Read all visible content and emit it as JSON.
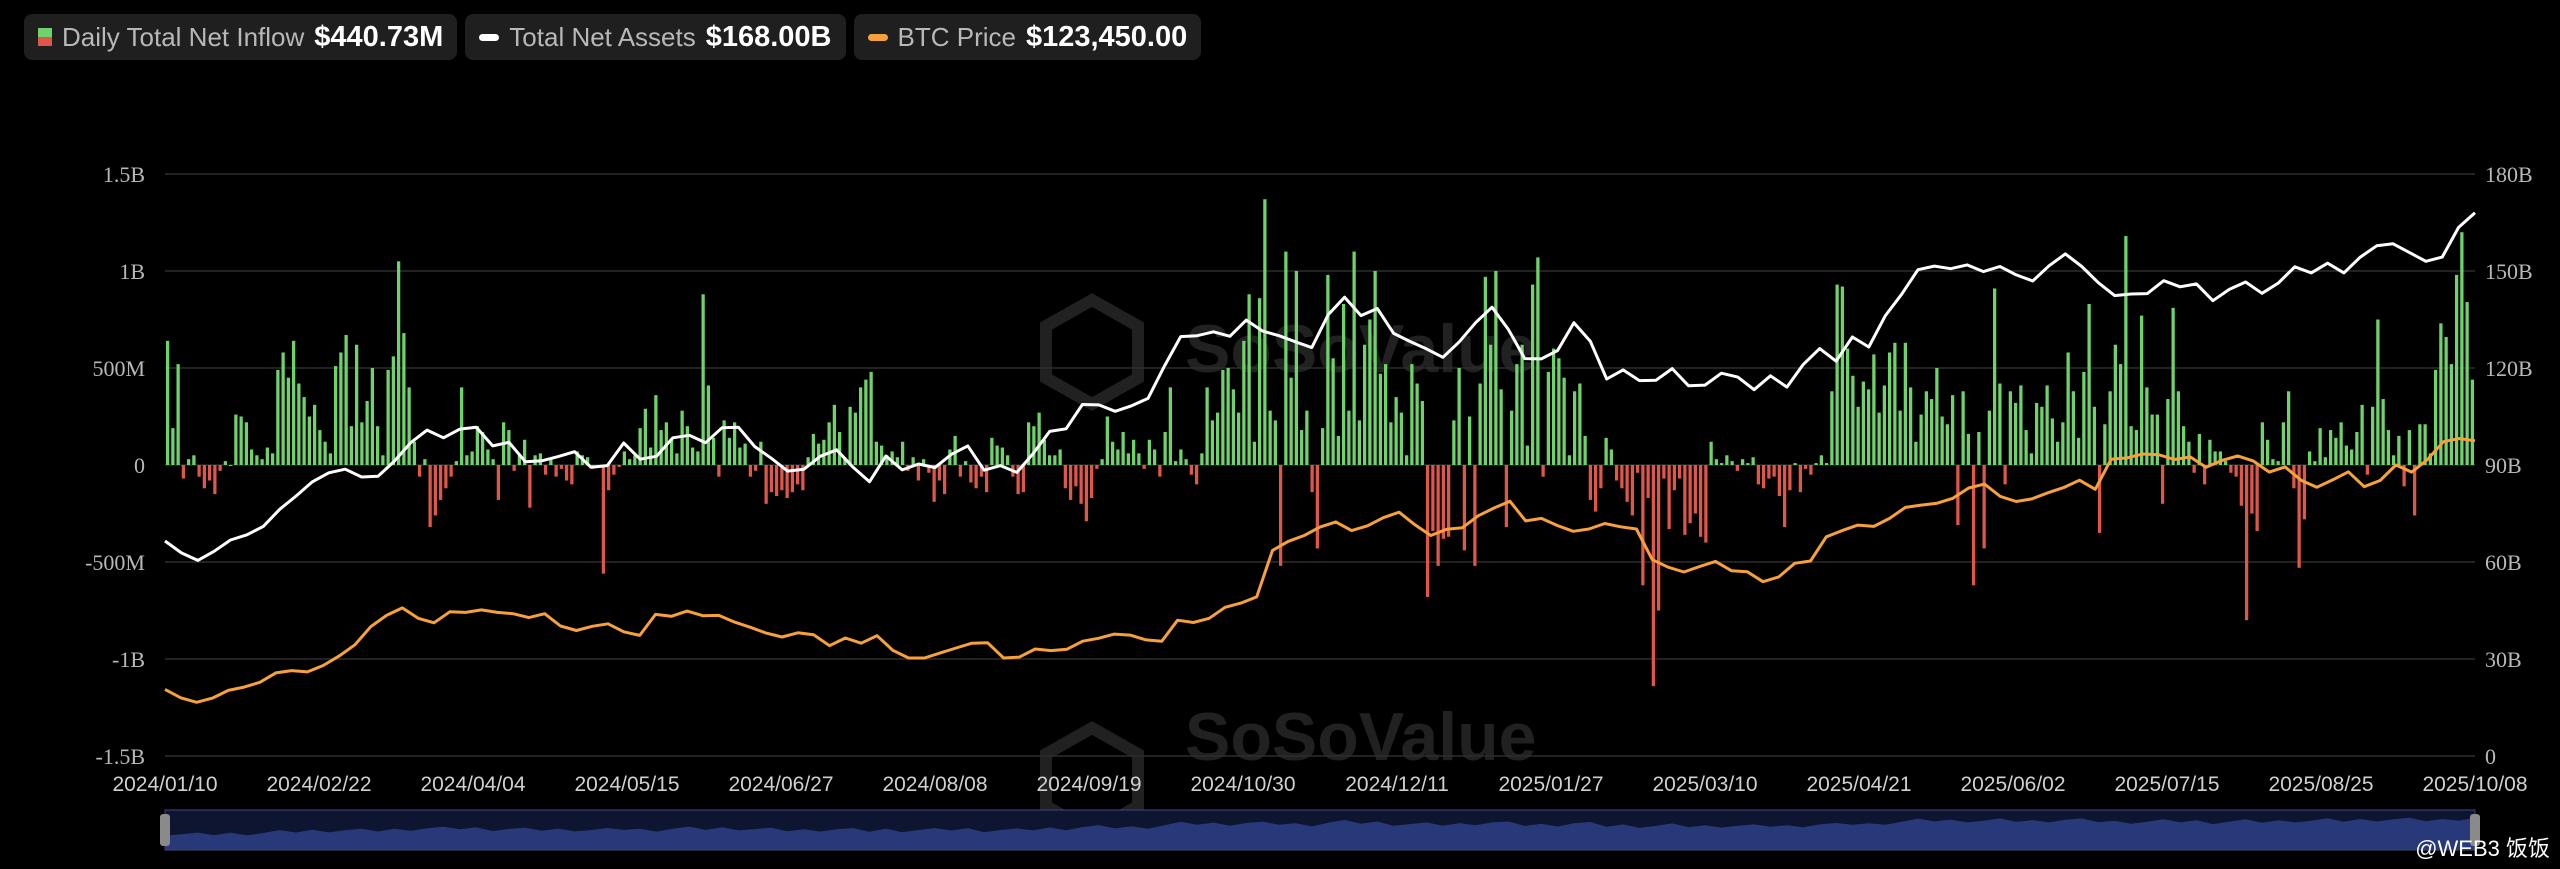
{
  "legend": [
    {
      "label": "Daily Total Net Inflow",
      "value": "$440.73M",
      "swatch": "split"
    },
    {
      "label": "Total Net Assets",
      "value": "$168.00B",
      "swatch": "line",
      "color": "#ffffff"
    },
    {
      "label": "BTC Price",
      "value": "$123,450.00",
      "swatch": "line",
      "color": "#f7a13c"
    }
  ],
  "watermark": "SoSoValue",
  "credit": "@WEB3 饭饭",
  "chart_data": {
    "type": "bar+line",
    "x_tick_labels": [
      "2024/01/10",
      "2024/02/22",
      "2024/04/04",
      "2024/05/15",
      "2024/06/27",
      "2024/08/08",
      "2024/09/19",
      "2024/10/30",
      "2024/12/11",
      "2025/01/27",
      "2025/03/10",
      "2025/04/21",
      "2025/06/02",
      "2025/07/15",
      "2025/08/25",
      "2025/10/08"
    ],
    "left_axis": {
      "ticks": [
        "1.5B",
        "1B",
        "500M",
        "0",
        "-500M",
        "-1B",
        "-1.5B"
      ],
      "range": [
        -1.5,
        1.5
      ],
      "unit": "B"
    },
    "right_axis": {
      "ticks": [
        "180B",
        "150B",
        "120B",
        "90B",
        "60B",
        "30B",
        "0"
      ],
      "range": [
        0,
        180
      ],
      "unit": "B"
    },
    "grid": true,
    "colors": {
      "inflow_pos": "#6fd36b",
      "inflow_neg": "#e0574a",
      "net_assets": "#ffffff",
      "btc_price": "#f7a13c",
      "navigator": "#2c3f86"
    },
    "daily_net_inflow_B": [
      0.64,
      0.19,
      0.52,
      -0.07,
      0.03,
      0.05,
      -0.06,
      -0.12,
      -0.08,
      -0.15,
      -0.03,
      0.02,
      0.0,
      0.26,
      0.25,
      0.22,
      0.08,
      0.05,
      0.03,
      0.09,
      0.06,
      0.49,
      0.58,
      0.45,
      0.64,
      0.42,
      0.35,
      0.25,
      0.31,
      0.18,
      0.12,
      0.06,
      0.51,
      0.58,
      0.67,
      0.2,
      0.62,
      0.22,
      0.33,
      0.5,
      0.2,
      0.05,
      0.49,
      0.56,
      1.05,
      0.68,
      0.4,
      0.12,
      -0.06,
      0.03,
      -0.32,
      -0.26,
      -0.18,
      -0.12,
      -0.06,
      0.02,
      0.4,
      0.05,
      0.07,
      0.2,
      0.17,
      0.08,
      0.03,
      -0.18,
      0.22,
      0.18,
      -0.03,
      0.05,
      0.13,
      -0.22,
      0.05,
      0.06,
      -0.05,
      0.03,
      -0.06,
      -0.02,
      -0.08,
      -0.1,
      0.07,
      0.05,
      0.04,
      -0.02,
      0.0,
      -0.56,
      -0.13,
      -0.05,
      -0.01,
      0.07,
      0.03,
      0.05,
      0.19,
      0.29,
      0.09,
      0.36,
      0.18,
      0.22,
      0.13,
      0.06,
      0.28,
      0.2,
      0.09,
      0.07,
      0.88,
      0.41,
      0.14,
      -0.06,
      0.23,
      0.14,
      0.22,
      0.09,
      0.11,
      -0.06,
      -0.03,
      0.12,
      -0.2,
      -0.14,
      -0.16,
      -0.13,
      -0.17,
      -0.14,
      -0.1,
      -0.13,
      0.04,
      0.16,
      0.11,
      0.13,
      0.22,
      0.31,
      0.17,
      0.03,
      0.3,
      0.27,
      0.4,
      0.44,
      0.48,
      0.12,
      0.1,
      0.05,
      0.07,
      0.04,
      0.12,
      -0.03,
      0.04,
      -0.08,
      0.03,
      -0.04,
      -0.19,
      -0.08,
      -0.15,
      0.08,
      0.15,
      -0.06,
      0.02,
      -0.09,
      -0.12,
      -0.06,
      -0.14,
      0.14,
      0.1,
      0.09,
      0.05,
      -0.06,
      -0.15,
      -0.14,
      0.22,
      0.2,
      0.27,
      0.13,
      0.05,
      0.05,
      0.08,
      -0.12,
      -0.18,
      -0.11,
      -0.2,
      -0.29,
      -0.17,
      -0.02,
      0.03,
      0.25,
      0.12,
      0.08,
      0.17,
      0.06,
      0.13,
      0.06,
      -0.02,
      0.13,
      0.08,
      -0.06,
      0.17,
      0.4,
      0.02,
      0.08,
      0.03,
      -0.05,
      -0.1,
      0.06,
      0.4,
      0.23,
      0.27,
      0.49,
      0.5,
      0.39,
      0.27,
      0.64,
      0.88,
      0.12,
      0.86,
      1.37,
      0.28,
      0.23,
      -0.52,
      1.1,
      0.45,
      1.0,
      0.18,
      0.28,
      -0.14,
      -0.43,
      0.19,
      0.98,
      0.55,
      0.15,
      0.83,
      0.28,
      1.1,
      0.23,
      0.62,
      0.75,
      1.0,
      0.47,
      0.52,
      0.22,
      0.35,
      0.27,
      0.05,
      0.52,
      0.42,
      0.33,
      -0.68,
      -0.34,
      -0.52,
      -0.38,
      -0.37,
      0.23,
      0.5,
      -0.44,
      0.25,
      -0.52,
      0.42,
      0.97,
      0.62,
      1.0,
      0.39,
      -0.32,
      0.28,
      0.52,
      0.62,
      0.1,
      0.93,
      1.07,
      -0.06,
      0.48,
      0.6,
      0.55,
      0.45,
      0.05,
      0.38,
      0.42,
      0.15,
      -0.18,
      -0.24,
      -0.12,
      0.14,
      0.08,
      -0.08,
      -0.12,
      -0.19,
      -0.26,
      -0.04,
      -0.62,
      -0.17,
      -1.14,
      -0.75,
      -0.07,
      -0.33,
      -0.13,
      -0.07,
      -0.36,
      -0.3,
      -0.25,
      -0.37,
      -0.4,
      0.12,
      0.03,
      0.01,
      0.05,
      0.02,
      -0.03,
      0.03,
      0.01,
      0.04,
      -0.1,
      -0.12,
      -0.07,
      -0.06,
      -0.16,
      -0.32,
      -0.13,
      0.01,
      -0.14,
      -0.02,
      -0.05,
      0.01,
      0.05,
      0.01,
      0.38,
      0.93,
      0.92,
      0.6,
      0.46,
      0.3,
      0.43,
      0.39,
      0.57,
      0.27,
      0.41,
      0.58,
      0.63,
      0.28,
      0.63,
      0.4,
      0.12,
      0.26,
      0.38,
      0.34,
      0.5,
      0.25,
      0.21,
      0.36,
      -0.31,
      0.38,
      0.16,
      -0.62,
      0.17,
      -0.43,
      0.28,
      0.91,
      0.42,
      -0.1,
      0.38,
      0.32,
      0.41,
      0.18,
      0.06,
      0.32,
      0.3,
      0.41,
      0.24,
      0.12,
      0.22,
      0.58,
      0.38,
      0.14,
      0.48,
      0.83,
      0.3,
      -0.35,
      0.21,
      0.38,
      0.62,
      0.52,
      1.18,
      0.2,
      0.18,
      0.77,
      0.4,
      0.26,
      0.26,
      -0.2,
      0.34,
      0.81,
      0.38,
      0.2,
      0.12,
      -0.04,
      0.16,
      -0.1,
      0.13,
      0.07,
      0.07,
      0.02,
      -0.04,
      -0.06,
      -0.21,
      -0.8,
      -0.25,
      -0.34,
      0.22,
      0.13,
      0.03,
      0.02,
      0.22,
      0.38,
      -0.12,
      -0.53,
      -0.28,
      0.07,
      0.02,
      0.19,
      0.04,
      0.18,
      0.14,
      0.22,
      0.1,
      0.08,
      0.17,
      0.31,
      -0.05,
      0.3,
      0.75,
      0.34,
      0.18,
      0.05,
      0.15,
      -0.11,
      0.18,
      -0.26,
      0.21,
      0.21,
      0.06,
      0.49,
      0.73,
      0.66,
      0.52,
      0.98,
      1.2,
      0.84,
      0.44
    ],
    "total_net_assets_B": [
      66.5,
      62.8,
      60.5,
      63.3,
      66.8,
      68.4,
      71.0,
      76.3,
      80.4,
      84.8,
      87.6,
      88.7,
      86.3,
      86.5,
      91.2,
      96.9,
      100.8,
      98.4,
      101.1,
      101.7,
      95.9,
      97.0,
      91.0,
      91.3,
      92.6,
      94.1,
      89.3,
      89.8,
      96.8,
      91.8,
      92.7,
      98.4,
      99.2,
      96.9,
      101.5,
      101.7,
      95.7,
      92.1,
      88.1,
      88.7,
      92.7,
      94.7,
      89.3,
      84.8,
      92.8,
      88.5,
      90.3,
      89.2,
      93.3,
      95.9,
      88.4,
      89.8,
      87.7,
      93.6,
      100.4,
      101.2,
      108.7,
      108.6,
      106.6,
      108.3,
      110.6,
      120.6,
      129.7,
      130.0,
      131.2,
      129.8,
      134.8,
      131.4,
      130.0,
      128.1,
      126.3,
      136.5,
      141.9,
      136.2,
      138.4,
      130.7,
      128.2,
      125.9,
      123.3,
      128.1,
      134.0,
      138.8,
      131.9,
      122.9,
      122.8,
      125.4,
      134.0,
      128.3,
      116.6,
      119.4,
      116.1,
      116.2,
      119.8,
      114.5,
      114.7,
      118.4,
      117.2,
      113.3,
      117.6,
      114.1,
      121.1,
      126.0,
      122.1,
      129.6,
      126.5,
      136.1,
      142.8,
      150.4,
      151.5,
      150.7,
      151.9,
      149.8,
      151.4,
      148.8,
      146.9,
      151.6,
      155.3,
      151.4,
      146.4,
      142.4,
      142.9,
      143.0,
      147.0,
      145.1,
      146.0,
      140.8,
      144.3,
      146.6,
      143.1,
      146.3,
      151.3,
      149.4,
      152.4,
      149.4,
      154.3,
      157.8,
      158.4,
      155.7,
      153.0,
      154.3,
      163.5,
      168.0
    ],
    "btc_price_K": [
      46.5,
      43.9,
      42.5,
      43.8,
      46.2,
      47.2,
      48.7,
      51.6,
      52.3,
      51.9,
      53.9,
      56.8,
      60.3,
      65.9,
      69.4,
      71.7,
      68.5,
      67.1,
      70.5,
      70.3,
      71.1,
      70.3,
      69.9,
      68.7,
      69.9,
      66.1,
      64.7,
      66.0,
      66.8,
      64.3,
      63.2,
      69.7,
      69.1,
      70.7,
      69.3,
      69.4,
      67.3,
      65.7,
      63.9,
      62.7,
      64.0,
      63.4,
      60.0,
      62.4,
      60.8,
      63.1,
      58.6,
      56.2,
      56.2,
      57.8,
      59.3,
      60.8,
      60.9,
      56.2,
      56.5,
      59.0,
      58.5,
      58.9,
      61.4,
      62.3,
      63.6,
      63.3,
      61.8,
      61.4,
      67.9,
      67.2,
      68.5,
      71.9,
      73.2,
      75.1,
      89.5,
      92.3,
      94.1,
      96.7,
      98.3,
      95.6,
      97.1,
      99.6,
      101.3,
      97.4,
      94.1,
      96.0,
      96.5,
      100.2,
      102.6,
      104.7,
      98.6,
      99.4,
      97.2,
      95.4,
      96.1,
      97.8,
      96.8,
      96.1,
      86.6,
      84.3,
      82.8,
      84.5,
      86.1,
      83.2,
      82.9,
      79.8,
      81.3,
      85.5,
      86.2,
      93.7,
      95.6,
      97.3,
      96.9,
      99.4,
      102.8,
      103.5,
      104.1,
      105.6,
      108.8,
      110.0,
      106.2,
      104.6,
      105.4,
      107.3,
      108.9,
      111.2,
      108.4,
      117.7,
      118.1,
      119.3,
      119.1,
      117.6,
      118.4,
      115.2,
      117.3,
      118.7,
      117.1,
      113.7,
      115.3,
      111.2,
      109.0,
      111.3,
      113.8,
      109.2,
      111.1,
      115.9,
      113.7,
      117.6,
      123.1,
      124.1,
      123.4
    ]
  }
}
